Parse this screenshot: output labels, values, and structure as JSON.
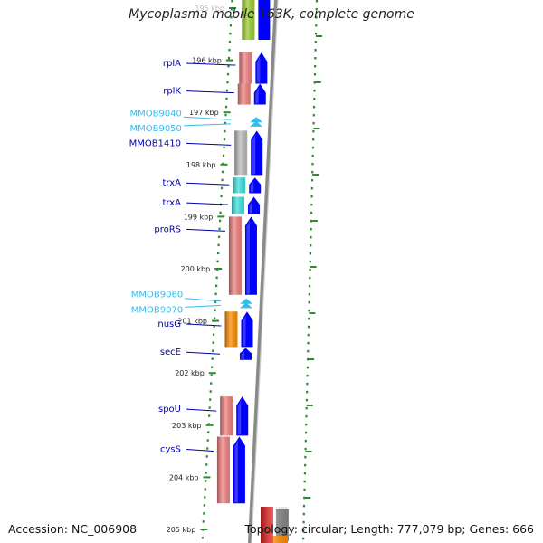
{
  "title": "Mycoplasma mobile 163K, complete genome",
  "footer": {
    "accession": "Accession: NC_006908",
    "topology": "Topology: circular; Length: 777,079 bp; Genes: 666"
  },
  "colors": {
    "ruler": "#2e8b2e",
    "backbone": "#8a8a8a",
    "cds_arrow": "#0000ff",
    "gene_label": "#0000aa",
    "hypothetical_label": "#33bbee",
    "hypothetical_arrow": "#33bbee"
  },
  "ticks": [
    "195 kbp",
    "196 kbp",
    "197 kbp",
    "198 kbp",
    "199 kbp",
    "200 kbp",
    "201 kbp",
    "202 kbp",
    "203 kbp",
    "204 kbp",
    "205 kbp"
  ],
  "genes": [
    {
      "label": "rplA",
      "type": "cds",
      "start": 195.85,
      "end": 196.45,
      "cog_color": "#f08080"
    },
    {
      "label": "rplK",
      "type": "cds",
      "start": 196.45,
      "end": 196.85,
      "cog_color": "#f08080"
    },
    {
      "label": "MMOB9040",
      "type": "hypothetical",
      "start": 197.1,
      "end": 197.18
    },
    {
      "label": "MMOB9050",
      "type": "hypothetical",
      "start": 197.18,
      "end": 197.26
    },
    {
      "label": "MMOB1410",
      "type": "cds",
      "start": 197.35,
      "end": 198.2,
      "cog_color": "#bbbbbb"
    },
    {
      "label": "trxA",
      "type": "cds",
      "start": 198.25,
      "end": 198.55,
      "cog_color": "#40e0e0"
    },
    {
      "label": "trxA",
      "type": "cds",
      "start": 198.62,
      "end": 198.95,
      "cog_color": "#40e0e0"
    },
    {
      "label": "proRS",
      "type": "cds",
      "start": 199.0,
      "end": 200.5,
      "cog_color": "#f08080"
    },
    {
      "label": "MMOB9060",
      "type": "hypothetical",
      "start": 200.58,
      "end": 200.66
    },
    {
      "label": "MMOB9070",
      "type": "hypothetical",
      "start": 200.66,
      "end": 200.74
    },
    {
      "label": "nusG",
      "type": "cds",
      "start": 200.82,
      "end": 201.5,
      "cog_color": "#ff8c00"
    },
    {
      "label": "secE",
      "type": "cds",
      "start": 201.52,
      "end": 201.75,
      "cog_color": null
    },
    {
      "label": "spoU",
      "type": "cds",
      "start": 202.45,
      "end": 203.2,
      "cog_color": "#f08080"
    },
    {
      "label": "cysS",
      "type": "cds",
      "start": 203.22,
      "end": 204.5,
      "cog_color": "#f08080"
    }
  ]
}
